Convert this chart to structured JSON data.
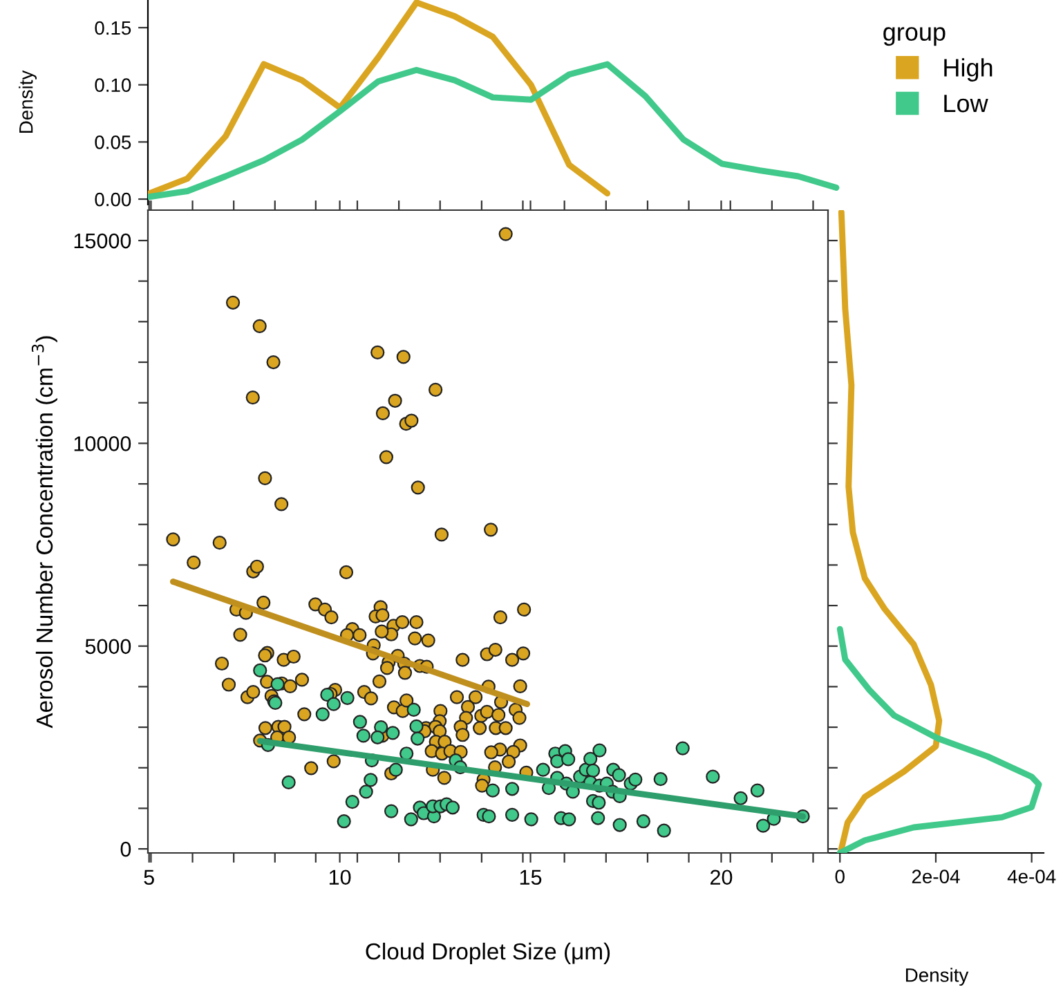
{
  "chart_data": [
    {
      "type": "line",
      "ylabel": "Density",
      "legend_title": "group",
      "legend": "right",
      "tick_labels": "y",
      "grid": false,
      "categories": [
        null,
        null,
        null,
        null,
        null,
        null,
        null,
        null,
        null,
        null,
        null,
        null,
        null,
        null,
        null,
        null,
        null,
        null,
        null
      ],
      "ylim": [
        -0.0048,
        0.1742
      ],
      "yticks": [
        {
          "value": 0,
          "label": "0.00"
        },
        {
          "value": 0.05,
          "label": "0.05"
        },
        {
          "value": 0.1,
          "label": "0.10"
        },
        {
          "value": 0.15,
          "label": "0.15"
        }
      ],
      "series": [
        {
          "name": "High",
          "color": "#daa520",
          "values": [
            0.005,
            0.018,
            0.055,
            0.118,
            0.104,
            0.08,
            0.124,
            0.172,
            0.16,
            0.142,
            0.1,
            0.03,
            0.005,
            null,
            null,
            null,
            null,
            null,
            null
          ]
        },
        {
          "name": "Low",
          "color": "#40c98a",
          "values": [
            0.002,
            0.007,
            0.02,
            0.034,
            0.052,
            0.077,
            0.103,
            0.113,
            0.104,
            0.089,
            0.087,
            0.109,
            0.118,
            0.09,
            0.052,
            0.031,
            0.025,
            0.02,
            0.01
          ]
        }
      ]
    },
    {
      "type": "scatter",
      "xlabel": "Cloud Droplet Size (μm)",
      "ylabel": "Aerosol Number Concentration (cm$^{−3}$)",
      "grid": false,
      "xlim": [
        4.97,
        22.8
      ],
      "ylim": [
        -100,
        15750
      ],
      "xticks": [
        5,
        10,
        15,
        20,
        {
          "value": 5.05,
          "label": null
        },
        {
          "value": 6.14,
          "label": null
        },
        {
          "value": 7.22,
          "label": null
        },
        {
          "value": 8.3,
          "label": null
        },
        {
          "value": 9.37,
          "label": null
        },
        {
          "value": 10.46,
          "label": null
        },
        {
          "value": 11.55,
          "label": null
        },
        {
          "value": 12.63,
          "label": null
        },
        {
          "value": 13.72,
          "label": null
        },
        {
          "value": 14.8,
          "label": null
        },
        {
          "value": 15.89,
          "label": null
        },
        {
          "value": 16.98,
          "label": null
        },
        {
          "value": 18.07,
          "label": null
        },
        {
          "value": 19.15,
          "label": null
        },
        {
          "value": 20.24,
          "label": null
        },
        {
          "value": 21.33,
          "label": null
        },
        {
          "value": 22.41,
          "label": null
        }
      ],
      "yticks": [
        0,
        {
          "value": 1000,
          "label": null
        },
        {
          "value": 2000,
          "label": null
        },
        {
          "value": 3000,
          "label": null
        },
        {
          "value": 4000,
          "label": null
        },
        5000,
        {
          "value": 6000,
          "label": null
        },
        {
          "value": 7000,
          "label": null
        },
        {
          "value": 8000,
          "label": null
        },
        {
          "value": 9000,
          "label": null
        },
        10000,
        {
          "value": 11000,
          "label": null
        },
        {
          "value": 12000,
          "label": null
        },
        {
          "value": 13000,
          "label": null
        },
        {
          "value": 14000,
          "label": null
        },
        15000
      ],
      "series": [
        {
          "color": "#daa520",
          "marker": "circle",
          "x": [
            7.2,
            7.9,
            8.26,
            7.72,
            8.04,
            8.47,
            10.99,
            11.67,
            12.51,
            11.45,
            11.13,
            11.74,
            11.88,
            11.22,
            12.05,
            14.35,
            13.96,
            5.63,
            6.85,
            6.17,
            7.73,
            7.83,
            10.17,
            12.67,
            8.0,
            7.29,
            7.54,
            9.36,
            9.61,
            9.78,
            7.39,
            11.07,
            10.94,
            11.12,
            11.41,
            11.64,
            12.01,
            10.33,
            10.19,
            10.52,
            11.35,
            11.1,
            11.97,
            12.32,
            10.89,
            10.87,
            8.1,
            8.04,
            6.91,
            8.53,
            8.79,
            11.28,
            11.24,
            11.52,
            11.69,
            11.71,
            12.1,
            12.28,
            13.22,
            13.86,
            14.08,
            11.04,
            7.09,
            8.09,
            8.48,
            8.7,
            9.01,
            7.58,
            7.73,
            8.21,
            8.28,
            9.88,
            9.76,
            10.64,
            10.82,
            11.42,
            11.65,
            11.75,
            9.07,
            13.07,
            13.56,
            13.36,
            13.31,
            12.64,
            12.62,
            13.71,
            13.86,
            12.26,
            12.51,
            12.22,
            12.62,
            13.17,
            13.22,
            13.67,
            12.52,
            12.75,
            12.41,
            12.68,
            12.9,
            13.17,
            8.05,
            8.39,
            8.55,
            8.36,
            8.67,
            7.91,
            11.12,
            9.25,
            9.84,
            11.35,
            12.44,
            12.74,
            13.77,
            13.73,
            14.21,
            14.83,
            14.52,
            14.81,
            13.9,
            14.73,
            14.23,
            14.16,
            14.61,
            14.71,
            14.09,
            14.35,
            14.73,
            14.55,
            14.2,
            13.97,
            14.43,
            14.07,
            14.89
          ],
          "values": [
            13470,
            12890,
            12000,
            11130,
            9140,
            8500,
            12240,
            12130,
            11320,
            11050,
            10740,
            10480,
            10560,
            9660,
            8910,
            15160,
            7870,
            7630,
            7550,
            7060,
            6840,
            6960,
            6820,
            7750,
            6070,
            5900,
            5820,
            6030,
            5900,
            5710,
            5280,
            5960,
            5730,
            5760,
            5500,
            5590,
            5590,
            5420,
            5270,
            5270,
            5290,
            5360,
            5190,
            5140,
            5020,
            4820,
            4830,
            4770,
            4570,
            4660,
            4740,
            4600,
            4460,
            4760,
            4570,
            4340,
            4510,
            4490,
            4660,
            4800,
            4910,
            4130,
            4050,
            4120,
            4080,
            4010,
            4170,
            3740,
            3870,
            3770,
            3640,
            3920,
            3820,
            3870,
            3710,
            3490,
            3400,
            3660,
            3320,
            3740,
            3740,
            3500,
            3230,
            3400,
            3150,
            3280,
            3380,
            2980,
            3010,
            2900,
            2900,
            3010,
            2810,
            2980,
            2640,
            2640,
            2410,
            2350,
            2410,
            2390,
            2980,
            3010,
            3010,
            2750,
            2750,
            2670,
            2790,
            1990,
            2160,
            1860,
            1950,
            1750,
            1710,
            1560,
            5710,
            5900,
            4660,
            4820,
            4000,
            4010,
            3620,
            3300,
            3430,
            3230,
            2980,
            2980,
            2550,
            2390,
            2450,
            2380,
            2150,
            2010,
            1880
          ]
        },
        {
          "color": "#40c98a",
          "marker": "circle",
          "x": [
            7.91,
            8.37,
            8.31,
            9.67,
            9.84,
            10.2,
            9.55,
            10.53,
            10.62,
            11.08,
            10.99,
            11.39,
            11.94,
            12.01,
            12.04,
            8.12,
            10.84,
            11.75,
            11.47,
            8.66,
            10.81,
            10.69,
            10.33,
            10.11,
            11.35,
            11.87,
            12.1,
            12.2,
            12.47,
            12.44,
            12.64,
            12.8,
            12.96,
            13.77,
            13.91,
            13.04,
            13.16,
            14.01,
            14.52,
            14.52,
            15.02,
            15.33,
            15.48,
            15.65,
            15.91,
            15.7,
            15.99,
            15.7,
            15.94,
            16.11,
            16.3,
            16.45,
            16.57,
            16.64,
            16.81,
            16.57,
            16.81,
            17.0,
            17.15,
            16.64,
            16.79,
            16.77,
            15.8,
            16.01,
            17.17,
            17.32,
            17.63,
            17.75,
            17.34,
            17.34,
            17.96,
            18.41,
            18.5,
            18.99,
            19.78,
            20.51,
            20.95,
            21.1,
            21.38,
            22.14
          ],
          "values": [
            4400,
            4060,
            3600,
            3800,
            3570,
            3720,
            3320,
            3130,
            2790,
            3000,
            2750,
            2860,
            3430,
            3020,
            2720,
            2560,
            2180,
            2350,
            1950,
            1640,
            1700,
            1410,
            1160,
            680,
            930,
            730,
            1020,
            880,
            800,
            1050,
            1050,
            1100,
            1020,
            840,
            800,
            2180,
            2010,
            1440,
            1480,
            840,
            730,
            1950,
            1500,
            2350,
            2410,
            2160,
            2210,
            1750,
            1610,
            1410,
            1780,
            1950,
            2220,
            1930,
            2430,
            1640,
            1560,
            1610,
            1410,
            1180,
            1140,
            760,
            760,
            730,
            1950,
            1820,
            1610,
            1710,
            1300,
            590,
            680,
            1720,
            450,
            2480,
            1780,
            1250,
            1440,
            570,
            740,
            800
          ]
        },
        {
          "type": "line",
          "color": "#c0901e",
          "x": [
            5.63,
            14.91
          ],
          "values": [
            6590,
            3570
          ]
        },
        {
          "type": "line",
          "color": "#2e9e6c",
          "x": [
            7.91,
            22.14
          ],
          "values": [
            2660,
            800
          ]
        }
      ]
    },
    {
      "type": "line",
      "xlabel": "Density",
      "tick_labels": "x",
      "grid": false,
      "xlim": [
        -2.2e-05,
        0.000425
      ],
      "ylim": [
        -100,
        15750
      ],
      "xticks": [
        0,
        {
          "value": 0.0002,
          "label": "2e-04"
        },
        {
          "value": 0.0004,
          "label": "4e-04"
        }
      ],
      "series": [
        {
          "color": "#daa520",
          "x": [
            3e-06,
            1.1e-05,
            2.4e-05,
            2.1e-05,
            1.8e-05,
            2.7e-05,
            5.2e-05,
            9.3e-05,
            0.000154,
            0.00019,
            0.000207,
            0.0002,
            0.000134,
            5.2e-05,
            1.6e-05,
            1e-06
          ],
          "values": [
            15700,
            13320,
            11430,
            10180,
            8930,
            7800,
            6670,
            5920,
            5040,
            4040,
            3160,
            2530,
            1910,
            1280,
            650,
            -100
          ]
        },
        {
          "color": "#40c98a",
          "x": [
            0,
            1.1e-05,
            6.2e-05,
            0.000113,
            0.000205,
            0.000308,
            0.0004,
            0.000415,
            0.0004,
            0.000338,
            0.000154,
            5.2e-05,
            0
          ],
          "values": [
            5420,
            4670,
            3910,
            3290,
            2720,
            2280,
            1780,
            1590,
            1030,
            780,
            530,
            210,
            -100
          ]
        }
      ]
    }
  ]
}
